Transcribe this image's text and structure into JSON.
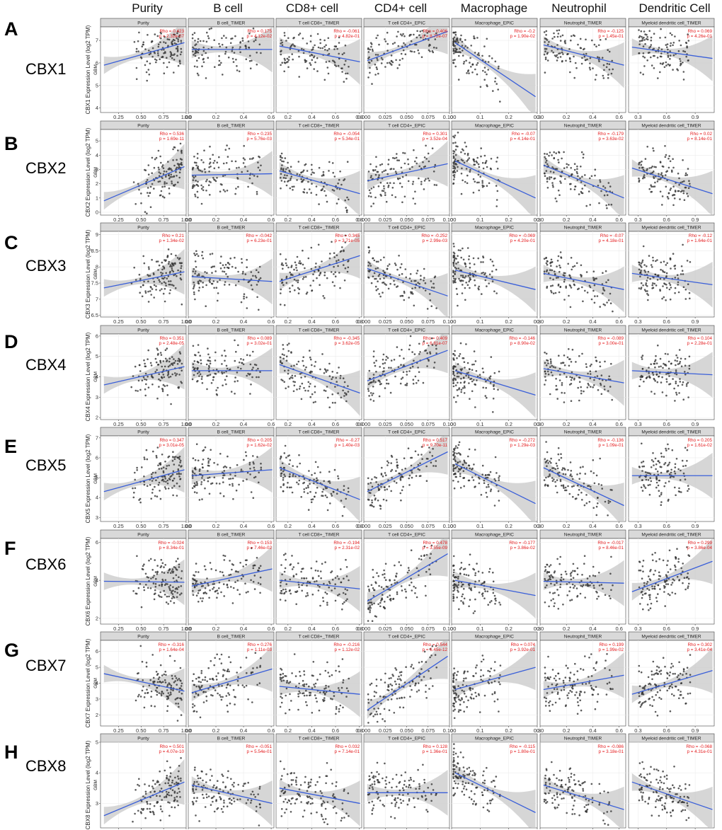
{
  "figure": {
    "column_headers": [
      "Purity",
      "B cell",
      "CD8+ cell",
      "CD4+ cell",
      "Macrophage",
      "Neutrophil",
      "Dendritic Cell"
    ],
    "strip_labels": [
      "Purity",
      "B cell_TIMER",
      "T cell CD8+_TIMER",
      "T cell CD4+_EPIC",
      "Macrophage_EPIC",
      "Neutrophil_TIMER",
      "Myeloid dendritic cell_TIMER"
    ],
    "cohort_label": "GBM",
    "colors": {
      "points": "#333333",
      "fit_line": "#3a5fd9",
      "ci_band": "#c8c8c8",
      "stats": "#e41a1c",
      "strip": "#d9d9d9"
    }
  },
  "chart_data": {
    "type": "scatter",
    "panel_x_axes": [
      {
        "name": "Purity",
        "xlim": [
          0.05,
          1.0
        ],
        "ticks": [
          "0.25",
          "0.50",
          "0.75",
          "1.00"
        ]
      },
      {
        "name": "B cell_TIMER",
        "xlim": [
          0.0,
          0.62
        ],
        "ticks": [
          "0.0",
          "0.2",
          "0.4",
          "0.6"
        ]
      },
      {
        "name": "T cell CD8+_TIMER",
        "xlim": [
          0.1,
          0.82
        ],
        "ticks": [
          "0.2",
          "0.4",
          "0.6",
          "0.8"
        ]
      },
      {
        "name": "T cell CD4+_EPIC",
        "xlim": [
          0.0,
          0.1
        ],
        "ticks": [
          "0.000",
          "0.025",
          "0.050",
          "0.075",
          "0.100"
        ]
      },
      {
        "name": "Macrophage_EPIC",
        "xlim": [
          0.0,
          0.3
        ],
        "ticks": [
          "0",
          "0.1",
          "0.2",
          "0.3"
        ]
      },
      {
        "name": "Neutrophil_TIMER",
        "xlim": [
          0.0,
          0.65
        ],
        "ticks": [
          "0.0",
          "0.2",
          "0.4",
          "0.6"
        ]
      },
      {
        "name": "Myeloid dendritic cell_TIMER",
        "xlim": [
          0.2,
          1.1
        ],
        "ticks": [
          "0.3",
          "0.6",
          "0.9"
        ]
      }
    ],
    "rows": [
      {
        "letter": "A",
        "gene": "CBX1",
        "ylabel": "CBX1 Expression Level (log2 TPM)",
        "ylim": [
          3.8,
          7.6
        ],
        "yticks": [
          4,
          5,
          6,
          7
        ],
        "panels": [
          {
            "rho": "Rho = 0.423",
            "p": "p = 2.32e-07",
            "y0": 5.9,
            "y1": 6.9
          },
          {
            "rho": "Rho = 0.175",
            "p": "p = 4.12e-02",
            "y0": 6.6,
            "y1": 6.6
          },
          {
            "rho": "Rho = -0.061",
            "p": "p = 4.82e-01",
            "y0": 6.75,
            "y1": 6.05
          },
          {
            "rho": "Rho = 0.406",
            "p": "p = 8.72e-07",
            "y0": 6.1,
            "y1": 7.4
          },
          {
            "rho": "Rho = -0.2",
            "p": "p = 1.90e-02",
            "y0": 6.9,
            "y1": 4.5
          },
          {
            "rho": "Rho = -0.125",
            "p": "p = 1.45e-01",
            "y0": 6.8,
            "y1": 5.9
          },
          {
            "rho": "Rho = 0.069",
            "p": "p = 4.26e-01",
            "y0": 6.7,
            "y1": 6.2
          }
        ]
      },
      {
        "letter": "B",
        "gene": "CBX2",
        "ylabel": "CBX2 Expression Level (log2 TPM)",
        "ylim": [
          -0.2,
          5.8
        ],
        "yticks": [
          0,
          1,
          2,
          3,
          4,
          5
        ],
        "panels": [
          {
            "rho": "Rho = 0.536",
            "p": "p = 1.69e-11",
            "y0": 0.8,
            "y1": 3.2
          },
          {
            "rho": "Rho = 0.235",
            "p": "p = 5.76e-03",
            "y0": 2.6,
            "y1": 2.7
          },
          {
            "rho": "Rho = -0.054",
            "p": "p = 5.34e-01",
            "y0": 2.9,
            "y1": 1.3
          },
          {
            "rho": "Rho = 0.301",
            "p": "p = 3.52e-04",
            "y0": 2.2,
            "y1": 3.4
          },
          {
            "rho": "Rho = -0.07",
            "p": "p = 4.14e-01",
            "y0": 3.6,
            "y1": 1.0
          },
          {
            "rho": "Rho = -0.179",
            "p": "p = 3.63e-02",
            "y0": 3.3,
            "y1": 1.0
          },
          {
            "rho": "Rho = 0.02",
            "p": "p = 8.14e-01",
            "y0": 3.1,
            "y1": 1.3
          }
        ]
      },
      {
        "letter": "C",
        "gene": "CBX3",
        "ylabel": "CBX3 Expression Level (log2 TPM)",
        "ylim": [
          6.45,
          9.1
        ],
        "yticks": [
          6.5,
          7.0,
          7.5,
          8.0,
          8.5,
          9.0
        ],
        "panels": [
          {
            "rho": "Rho = 0.21",
            "p": "p = 1.34e-02",
            "y0": 7.35,
            "y1": 7.85
          },
          {
            "rho": "Rho = -0.042",
            "p": "p = 6.23e-01",
            "y0": 7.7,
            "y1": 7.55
          },
          {
            "rho": "Rho = 0.345",
            "p": "p = 3.71e-05",
            "y0": 7.55,
            "y1": 8.35
          },
          {
            "rho": "Rho = -0.252",
            "p": "p = 2.99e-03",
            "y0": 7.95,
            "y1": 7.1
          },
          {
            "rho": "Rho = -0.069",
            "p": "p = 4.20e-01",
            "y0": 7.9,
            "y1": 7.3
          },
          {
            "rho": "Rho = -0.07",
            "p": "p = 4.18e-01",
            "y0": 7.8,
            "y1": 7.3
          },
          {
            "rho": "Rho = -0.12",
            "p": "p = 1.64e-01",
            "y0": 7.8,
            "y1": 7.45
          }
        ]
      },
      {
        "letter": "D",
        "gene": "CBX4",
        "ylabel": "CBX4 Expression Level (log2 TPM)",
        "ylim": [
          1.9,
          6.1
        ],
        "yticks": [
          2,
          3,
          4,
          5,
          6
        ],
        "panels": [
          {
            "rho": "Rho = 0.351",
            "p": "p = 2.48e-05",
            "y0": 3.6,
            "y1": 4.5
          },
          {
            "rho": "Rho = 0.089",
            "p": "p = 3.02e-01",
            "y0": 4.3,
            "y1": 4.3
          },
          {
            "rho": "Rho = -0.345",
            "p": "p = 3.62e-05",
            "y0": 4.6,
            "y1": 3.2
          },
          {
            "rho": "Rho = 0.409",
            "p": "p = 6.81e-07",
            "y0": 3.8,
            "y1": 5.3
          },
          {
            "rho": "Rho = -0.146",
            "p": "p = 8.90e-02",
            "y0": 4.3,
            "y1": 3.1
          },
          {
            "rho": "Rho = -0.089",
            "p": "p = 3.00e-01",
            "y0": 4.4,
            "y1": 3.7
          },
          {
            "rho": "Rho = 0.104",
            "p": "p = 2.28e-01",
            "y0": 4.3,
            "y1": 4.1
          }
        ]
      },
      {
        "letter": "E",
        "gene": "CBX5",
        "ylabel": "CBX5 Expression Level (log2 TPM)",
        "ylim": [
          2.8,
          7.1
        ],
        "yticks": [
          3,
          4,
          5,
          6,
          7
        ],
        "panels": [
          {
            "rho": "Rho = 0.347",
            "p": "p = 3.01e-05",
            "y0": 4.3,
            "y1": 5.4
          },
          {
            "rho": "Rho = 0.205",
            "p": "p = 1.62e-02",
            "y0": 5.1,
            "y1": 5.4
          },
          {
            "rho": "Rho = -0.27",
            "p": "p = 1.40e-03",
            "y0": 5.5,
            "y1": 3.9
          },
          {
            "rho": "Rho = 0.517",
            "p": "p = 9.70e-11",
            "y0": 4.3,
            "y1": 6.3
          },
          {
            "rho": "Rho = -0.272",
            "p": "p = 1.29e-03",
            "y0": 5.7,
            "y1": 3.7
          },
          {
            "rho": "Rho = -0.136",
            "p": "p = 1.09e-01",
            "y0": 5.5,
            "y1": 3.6
          },
          {
            "rho": "Rho = 0.205",
            "p": "p = 1.61e-02",
            "y0": 5.1,
            "y1": 5.1
          }
        ]
      },
      {
        "letter": "F",
        "gene": "CBX6",
        "ylabel": "CBX6 Expression Level (log2 TPM)",
        "ylim": [
          1.7,
          6.2
        ],
        "yticks": [
          2,
          4,
          6
        ],
        "panels": [
          {
            "rho": "Rho = -0.024",
            "p": "p = 8.34e-01",
            "y0": 3.95,
            "y1": 3.9
          },
          {
            "rho": "Rho = 0.153",
            "p": "p = 7.46e-02",
            "y0": 3.7,
            "y1": 4.6
          },
          {
            "rho": "Rho = -0.194",
            "p": "p = 2.31e-02",
            "y0": 4.0,
            "y1": 3.55
          },
          {
            "rho": "Rho = 0.478",
            "p": "p = 3.55e-09",
            "y0": 2.9,
            "y1": 5.4
          },
          {
            "rho": "Rho = -0.177",
            "p": "p = 3.86e-02",
            "y0": 4.0,
            "y1": 3.2
          },
          {
            "rho": "Rho = -0.017",
            "p": "p = 8.46e-01",
            "y0": 3.95,
            "y1": 3.85
          },
          {
            "rho": "Rho = 0.299",
            "p": "p = 3.86e-04",
            "y0": 3.4,
            "y1": 5.0
          }
        ]
      },
      {
        "letter": "G",
        "gene": "CBX7",
        "ylabel": "CBX7 Expression Level (log2 TPM)",
        "ylim": [
          1.3,
          6.7
        ],
        "yticks": [
          2,
          3,
          4,
          5,
          6
        ],
        "panels": [
          {
            "rho": "Rho = -0.316",
            "p": "p = 1.64e-04",
            "y0": 4.6,
            "y1": 3.5
          },
          {
            "rho": "Rho = 0.276",
            "p": "p = 1.11e-03",
            "y0": 3.4,
            "y1": 4.9
          },
          {
            "rho": "Rho = -0.216",
            "p": "p = 1.12e-02",
            "y0": 3.8,
            "y1": 3.3
          },
          {
            "rho": "Rho = 0.544",
            "p": "p = 6.45e-12",
            "y0": 2.3,
            "y1": 5.7
          },
          {
            "rho": "Rho = 0.074",
            "p": "p = 3.92e-01",
            "y0": 3.6,
            "y1": 5.0
          },
          {
            "rho": "Rho = 0.199",
            "p": "p = 1.99e-02",
            "y0": 3.6,
            "y1": 4.5
          },
          {
            "rho": "Rho = 0.302",
            "p": "p = 3.41e-04",
            "y0": 3.3,
            "y1": 4.8
          }
        ]
      },
      {
        "letter": "H",
        "gene": "CBX8",
        "ylabel": "CBX8 Expression Level (log2 TPM)",
        "ylim": [
          2.2,
          5.0
        ],
        "yticks": [
          3,
          4,
          5
        ],
        "panels": [
          {
            "rho": "Rho = 0.501",
            "p": "p = 4.07e-10",
            "y0": 2.6,
            "y1": 3.7
          },
          {
            "rho": "Rho = -0.051",
            "p": "p = 5.54e-01",
            "y0": 3.6,
            "y1": 3.0
          },
          {
            "rho": "Rho = 0.032",
            "p": "p = 7.14e-01",
            "y0": 3.5,
            "y1": 3.0
          },
          {
            "rho": "Rho = 0.128",
            "p": "p = 1.36e-01",
            "y0": 3.35,
            "y1": 3.35
          },
          {
            "rho": "Rho = -0.115",
            "p": "p = 1.80e-01",
            "y0": 4.0,
            "y1": 2.7
          },
          {
            "rho": "Rho = -0.086",
            "p": "p = 3.18e-01",
            "y0": 3.6,
            "y1": 2.8
          },
          {
            "rho": "Rho = -0.068",
            "p": "p = 4.31e-01",
            "y0": 3.7,
            "y1": 2.8
          }
        ]
      }
    ]
  }
}
